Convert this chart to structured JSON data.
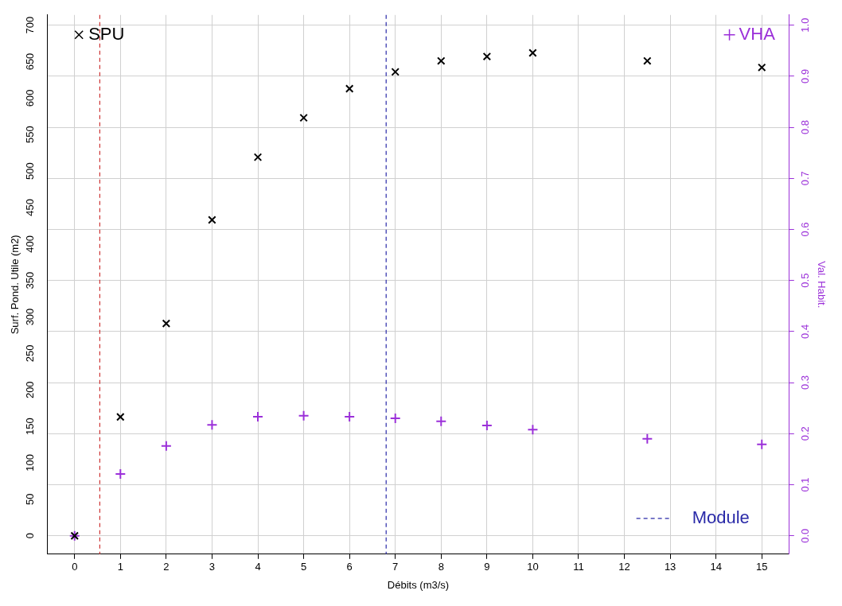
{
  "chart_data": {
    "type": "scatter",
    "xlabel": "Débits (m3/s)",
    "ylabel": "Surf. Pond. Utile (m2)",
    "y2label": "Val. Habit.",
    "x": [
      0,
      1,
      2,
      3,
      4,
      5,
      6,
      7,
      8,
      9,
      10,
      12.5,
      15
    ],
    "series": [
      {
        "name": "SPU",
        "color": "#000000",
        "marker": "cross",
        "values": [
          0,
          163,
          291,
          433,
          519,
          573,
          613,
          636,
          651,
          657,
          662,
          651,
          642
        ]
      },
      {
        "name": "VHA",
        "color": "#9b30d9",
        "marker": "plus",
        "axis": "y2",
        "values": [
          0,
          0.121,
          0.176,
          0.217,
          0.233,
          0.235,
          0.233,
          0.23,
          0.224,
          0.216,
          0.208,
          0.19,
          0.179
        ]
      }
    ],
    "xlim": [
      -0.6,
      15.6
    ],
    "xticks": [
      0,
      1,
      2,
      3,
      4,
      5,
      6,
      7,
      8,
      9,
      10,
      11,
      12,
      13,
      14,
      15
    ],
    "ylim": [
      -25.2,
      714
    ],
    "yticks": [
      0,
      50,
      100,
      150,
      200,
      250,
      300,
      350,
      400,
      450,
      500,
      550,
      600,
      650,
      700
    ],
    "y2lim": [
      -0.036,
      1.02
    ],
    "y2ticks": [
      {
        "value": 0,
        "label": "0.0"
      },
      0.1,
      0.2,
      0.3,
      0.4,
      0.5,
      0.6,
      0.7,
      0.8,
      0.9,
      {
        "value": 1,
        "label": "1.0"
      }
    ],
    "ref_lines": [
      {
        "axis": "x",
        "value": 0.55,
        "color": "#cc3333",
        "line_style": "dashed"
      },
      {
        "axis": "x",
        "value": 6.8,
        "label": "Module",
        "color": "#2a2aa8",
        "line_style": "dashed"
      }
    ],
    "grid": true,
    "legend": "top"
  }
}
